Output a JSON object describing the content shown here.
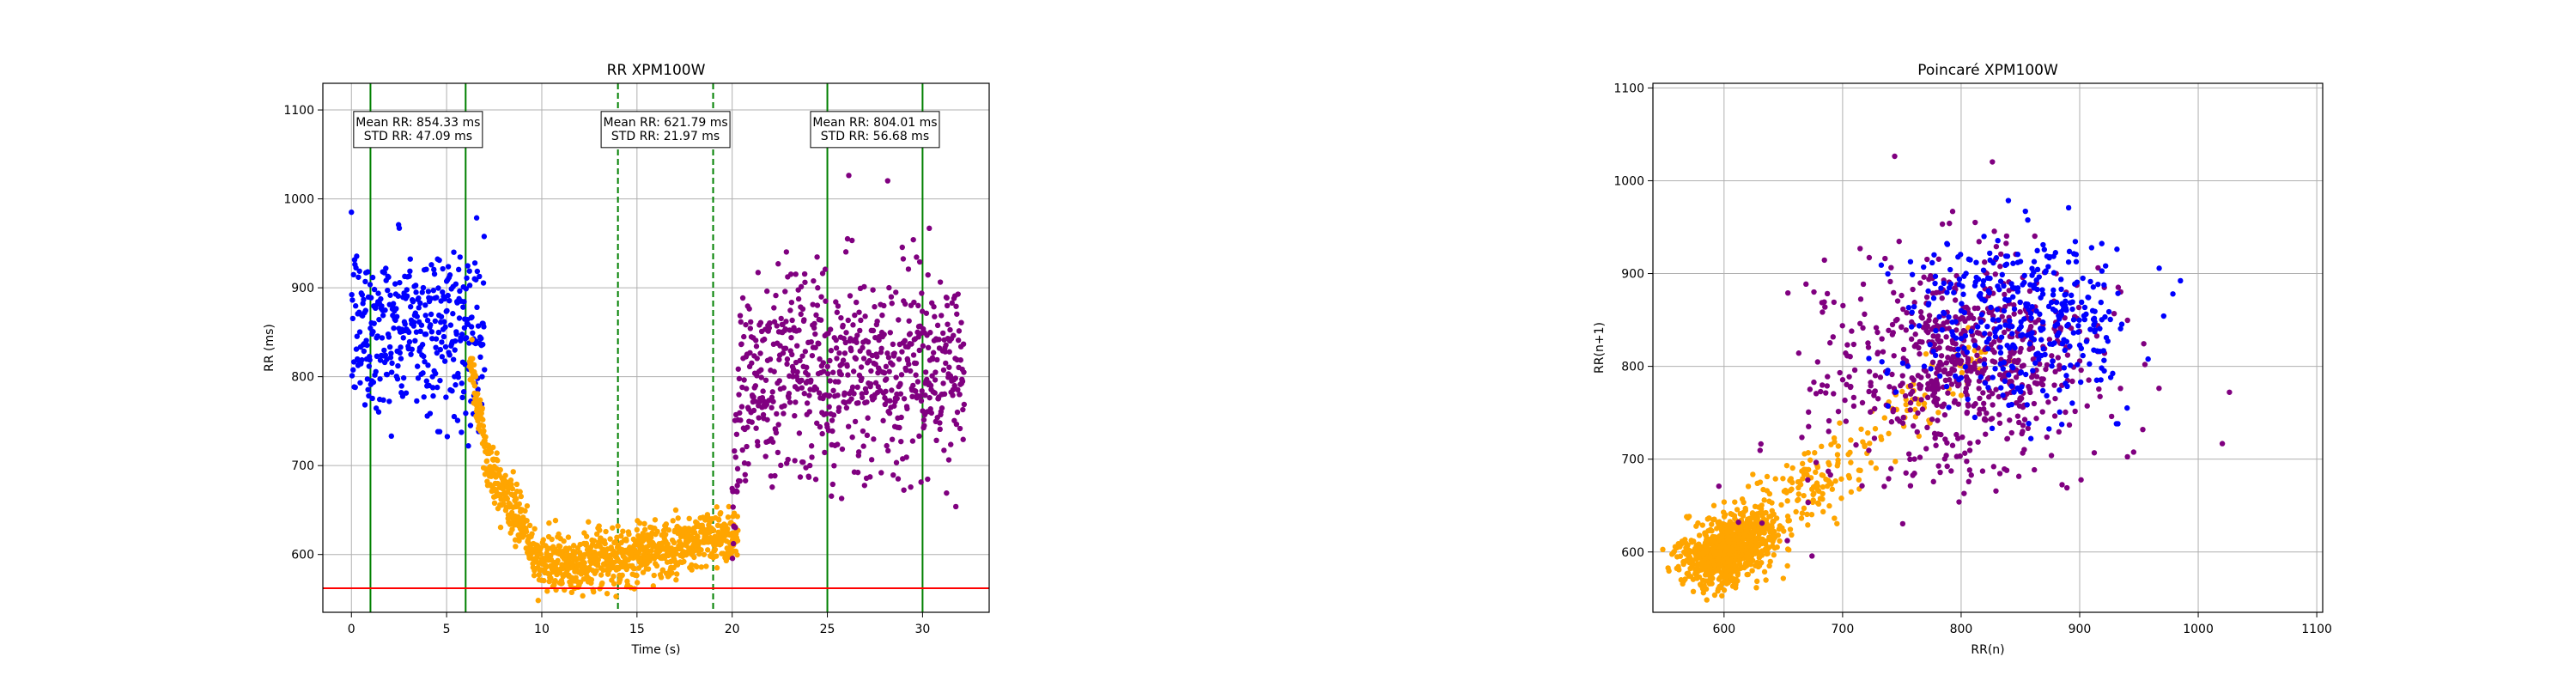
{
  "chart_data": [
    {
      "type": "scatter",
      "title": "RR XPM100W",
      "xlabel": "Time (s)",
      "ylabel": "RR (ms)",
      "xlim": [
        -1.5,
        33.5
      ],
      "ylim": [
        535,
        1130
      ],
      "xticks": [
        0,
        5,
        10,
        15,
        20,
        25,
        30
      ],
      "yticks": [
        600,
        700,
        800,
        900,
        1000,
        1100
      ],
      "grid": true,
      "series": [
        {
          "color": "#0000ff",
          "x_range": [
            0,
            7.0
          ],
          "y_mean": 854.33,
          "y_std": 47.09
        },
        {
          "color": "#ffa500",
          "x_range": [
            6.2,
            20.3
          ],
          "y_mean": 621.79,
          "y_std": 21.97
        },
        {
          "color": "#800080",
          "x_range": [
            20.0,
            32.2
          ],
          "y_mean": 804.01,
          "y_std": 56.68
        }
      ],
      "vlines": [
        {
          "x": 1.0,
          "color": "#008000",
          "style": "solid"
        },
        {
          "x": 6.0,
          "color": "#008000",
          "style": "solid"
        },
        {
          "x": 14.0,
          "color": "#008000",
          "style": "dashed"
        },
        {
          "x": 19.0,
          "color": "#008000",
          "style": "dashed"
        },
        {
          "x": 25.0,
          "color": "#008000",
          "style": "solid"
        },
        {
          "x": 30.0,
          "color": "#008000",
          "style": "solid"
        }
      ],
      "hlines": [
        {
          "y": 562,
          "color": "#ff0000",
          "style": "solid"
        }
      ],
      "annotations": [
        {
          "x": 3.5,
          "y": 1078,
          "lines": [
            "Mean RR: 854.33 ms",
            "STD RR: 47.09 ms"
          ]
        },
        {
          "x": 16.5,
          "y": 1078,
          "lines": [
            "Mean RR: 621.79 ms",
            "STD RR: 21.97 ms"
          ]
        },
        {
          "x": 27.5,
          "y": 1078,
          "lines": [
            "Mean RR: 804.01 ms",
            "STD RR: 56.68 ms"
          ]
        }
      ]
    },
    {
      "type": "scatter",
      "title": "Poincaré XPM100W",
      "xlabel": "RR(n)",
      "ylabel": "RR(n+1)",
      "xlim": [
        540,
        1105
      ],
      "ylim": [
        535,
        1105
      ],
      "xticks": [
        600,
        700,
        800,
        900,
        1000,
        1100
      ],
      "yticks": [
        600,
        700,
        800,
        900,
        1000,
        1100
      ],
      "grid": true,
      "series": [
        {
          "color": "#ffa500",
          "center": 621.79,
          "std": 21.97
        },
        {
          "color": "#800080",
          "center": 804.01,
          "std": 56.68
        },
        {
          "color": "#0000ff",
          "center": 854.33,
          "std": 47.09
        }
      ]
    }
  ]
}
